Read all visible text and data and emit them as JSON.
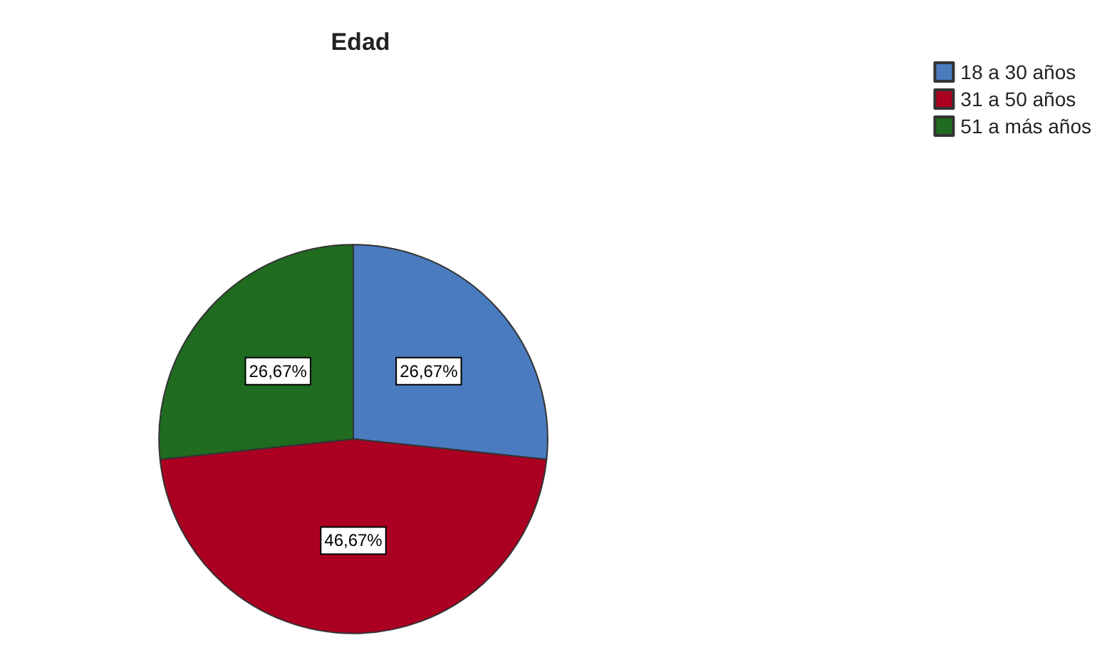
{
  "chart_data": {
    "type": "pie",
    "title": "Edad",
    "categories": [
      "18 a 30 años",
      "31 a 50 años",
      "51 a más años"
    ],
    "values": [
      26.67,
      46.67,
      26.67
    ],
    "colors": [
      "#4a7bbf",
      "#ab0022",
      "#1f6b1f"
    ],
    "value_labels": [
      "26,67%",
      "46,67%",
      "26,67%"
    ],
    "legend": "top right"
  }
}
